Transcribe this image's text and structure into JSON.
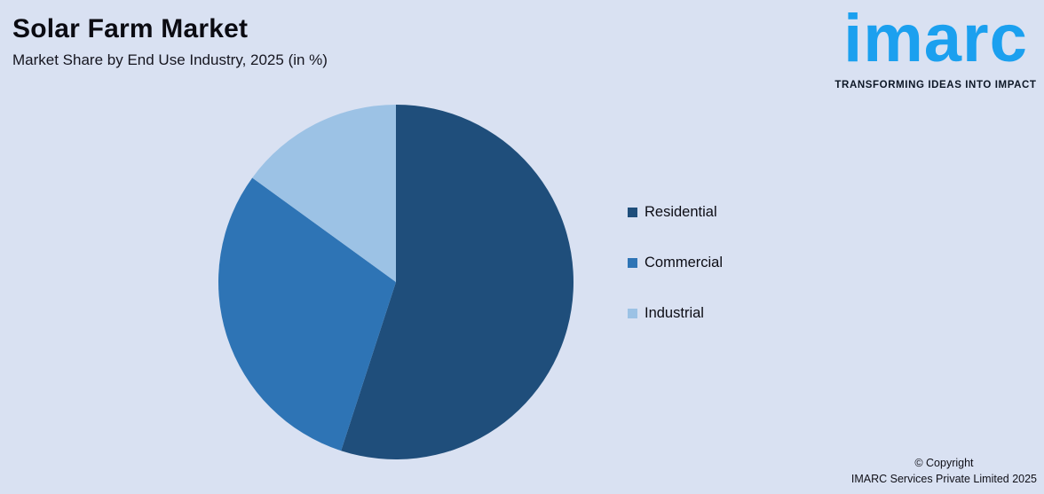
{
  "chart_data": {
    "type": "pie",
    "title": "Solar Farm Market",
    "subtitle": "Market Share by End Use Industry, 2025 (in %)",
    "categories": [
      "Residential",
      "Commercial",
      "Industrial"
    ],
    "values": [
      55,
      30,
      15
    ],
    "unit": "%",
    "colors": [
      "#1F4E7B",
      "#2E74B5",
      "#9CC2E5"
    ],
    "legend_position": "right",
    "start_angle_deg": 0,
    "direction": "clockwise"
  },
  "logo": {
    "text": "imarc",
    "tagline": "TRANSFORMING IDEAS INTO IMPACT",
    "color": "#1BA0EF"
  },
  "footer": {
    "copyright_line1": "© Copyright",
    "copyright_line2": "IMARC Services Private Limited 2025"
  },
  "background_color": "#D9E1F2"
}
